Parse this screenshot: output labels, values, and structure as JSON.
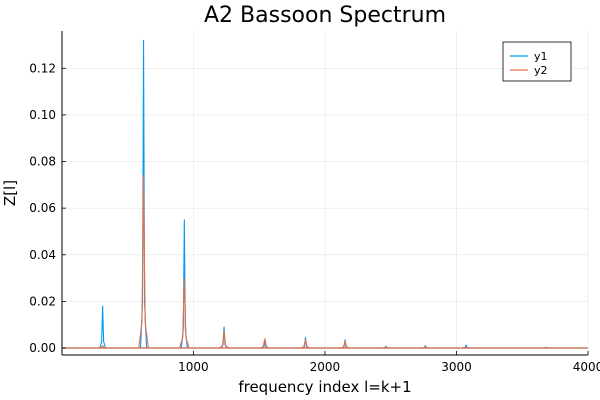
{
  "chart_data": {
    "type": "line",
    "title": "A2 Bassoon Spectrum",
    "xlabel": "frequency index l=k+1",
    "ylabel": "Z[l]",
    "xlim": [
      1,
      4000
    ],
    "ylim": [
      -0.003,
      0.136
    ],
    "grid": true,
    "legend_position": "top-right",
    "x_ticks": [
      1000,
      2000,
      3000,
      4000
    ],
    "x_tick_labels": [
      "1000",
      "2000",
      "3000",
      "4000"
    ],
    "y_ticks": [
      0,
      0.02,
      0.04,
      0.06,
      0.08,
      0.1,
      0.12
    ],
    "y_tick_labels": [
      "0.00",
      "0.02",
      "0.04",
      "0.06",
      "0.08",
      "0.10",
      "0.12"
    ],
    "series": [
      {
        "name": "y1",
        "color": "#009af9",
        "peaks": [
          {
            "x": 310,
            "y": 0.018
          },
          {
            "x": 621,
            "y": 0.132
          },
          {
            "x": 931,
            "y": 0.055
          },
          {
            "x": 1233,
            "y": 0.009
          },
          {
            "x": 1543,
            "y": 0.003
          },
          {
            "x": 1852,
            "y": 0.0045
          },
          {
            "x": 2153,
            "y": 0.0035
          },
          {
            "x": 2463,
            "y": 0.0008
          },
          {
            "x": 2763,
            "y": 0.001
          },
          {
            "x": 3073,
            "y": 0.0013
          },
          {
            "x": 3683,
            "y": 0.0003
          }
        ]
      },
      {
        "name": "y2",
        "color": "#e26f46",
        "peaks": [
          {
            "x": 310,
            "y": 0.001
          },
          {
            "x": 621,
            "y": 0.074
          },
          {
            "x": 931,
            "y": 0.03
          },
          {
            "x": 1233,
            "y": 0.007
          },
          {
            "x": 1543,
            "y": 0.004
          },
          {
            "x": 1852,
            "y": 0.0035
          },
          {
            "x": 2153,
            "y": 0.003
          },
          {
            "x": 2463,
            "y": 0.0005
          },
          {
            "x": 2763,
            "y": 0.0006
          },
          {
            "x": 3073,
            "y": 0.0005
          },
          {
            "x": 3683,
            "y": 0.0003
          }
        ]
      }
    ]
  }
}
